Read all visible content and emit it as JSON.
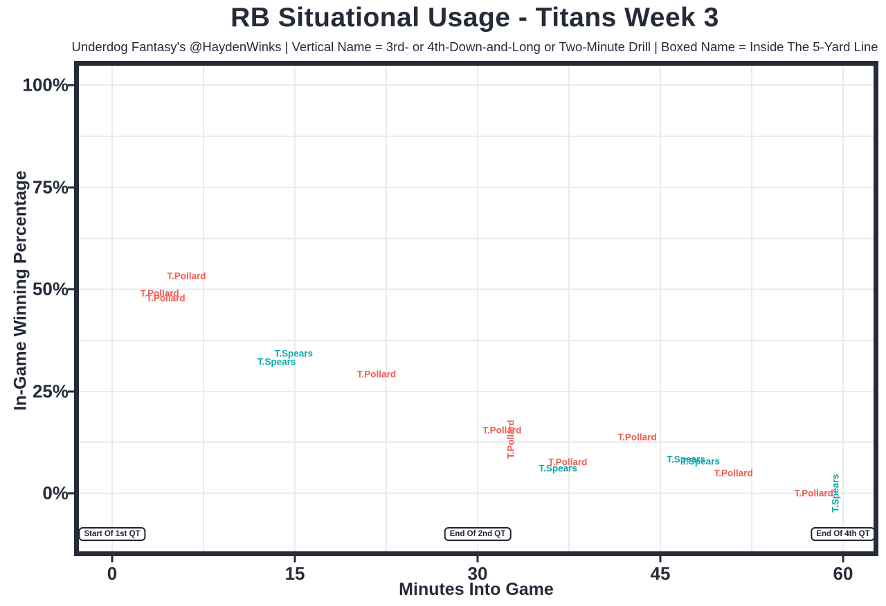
{
  "header": {
    "title": "RB Situational Usage - Titans Week 3",
    "subtitle": "Underdog Fantasy's @HaydenWinks | Vertical Name = 3rd- or 4th-Down-and-Long or Two-Minute Drill | Boxed Name = Inside The 5-Yard Line"
  },
  "chart_data": {
    "type": "scatter",
    "title": "RB Situational Usage - Titans Week 3",
    "subtitle": "Underdog Fantasy's @HaydenWinks | Vertical Name = 3rd- or 4th-Down-and-Long or Two-Minute Drill | Boxed Name = Inside The 5-Yard Line",
    "xlabel": "Minutes Into Game",
    "ylabel": "In-Game Winning Percentage",
    "xlim": [
      -2.73,
      62.5
    ],
    "ylim": [
      -14.2,
      104.8
    ],
    "grid": "on",
    "legend": "none",
    "marker_style": "text-labels",
    "colors": {
      "ink": "#252B38",
      "grid": "#EBEBEB",
      "background": "#FFFFFF"
    },
    "x_major_ticks": [
      {
        "value": 0,
        "label": "0"
      },
      {
        "value": 15,
        "label": "15"
      },
      {
        "value": 30,
        "label": "30"
      },
      {
        "value": 45,
        "label": "45"
      },
      {
        "value": 60,
        "label": "60"
      }
    ],
    "y_major_ticks": [
      {
        "value": 0,
        "label": "0%"
      },
      {
        "value": 25,
        "label": "25%"
      },
      {
        "value": 50,
        "label": "50%"
      },
      {
        "value": 75,
        "label": "75%"
      },
      {
        "value": 100,
        "label": "100%"
      }
    ],
    "x_minor_gridlines": [
      7.5,
      22.5,
      37.5,
      52.5
    ],
    "y_minor_gridlines": [
      12.5,
      37.5,
      62.5,
      87.5
    ],
    "series": [
      {
        "name": "T.Pollard",
        "color": "#F25C55",
        "points": [
          {
            "x": 3.9,
            "y": 49.0,
            "orientation": "horizontal"
          },
          {
            "x": 4.4,
            "y": 47.8,
            "orientation": "horizontal"
          },
          {
            "x": 6.1,
            "y": 53.2,
            "orientation": "horizontal"
          },
          {
            "x": 21.7,
            "y": 29.2,
            "orientation": "horizontal"
          },
          {
            "x": 32.0,
            "y": 15.4,
            "orientation": "horizontal"
          },
          {
            "x": 32.7,
            "y": 13.3,
            "orientation": "vertical"
          },
          {
            "x": 37.4,
            "y": 7.7,
            "orientation": "horizontal"
          },
          {
            "x": 43.1,
            "y": 13.7,
            "orientation": "horizontal"
          },
          {
            "x": 51.0,
            "y": 5.0,
            "orientation": "horizontal"
          },
          {
            "x": 57.6,
            "y": 0.0,
            "orientation": "horizontal"
          }
        ]
      },
      {
        "name": "T.Spears",
        "color": "#0BA8AA",
        "points": [
          {
            "x": 13.5,
            "y": 32.3,
            "orientation": "horizontal"
          },
          {
            "x": 14.9,
            "y": 34.3,
            "orientation": "horizontal"
          },
          {
            "x": 36.6,
            "y": 6.1,
            "orientation": "horizontal"
          },
          {
            "x": 47.1,
            "y": 8.4,
            "orientation": "horizontal"
          },
          {
            "x": 48.3,
            "y": 7.8,
            "orientation": "horizontal"
          },
          {
            "x": 59.4,
            "y": 0.0,
            "orientation": "vertical"
          }
        ]
      }
    ],
    "annotations": [
      {
        "label": "Start Of 1st QT",
        "x": 0,
        "y": -10
      },
      {
        "label": "End Of 2nd QT",
        "x": 30,
        "y": -10
      },
      {
        "label": "End Of 4th QT",
        "x": 60,
        "y": -10
      }
    ]
  }
}
